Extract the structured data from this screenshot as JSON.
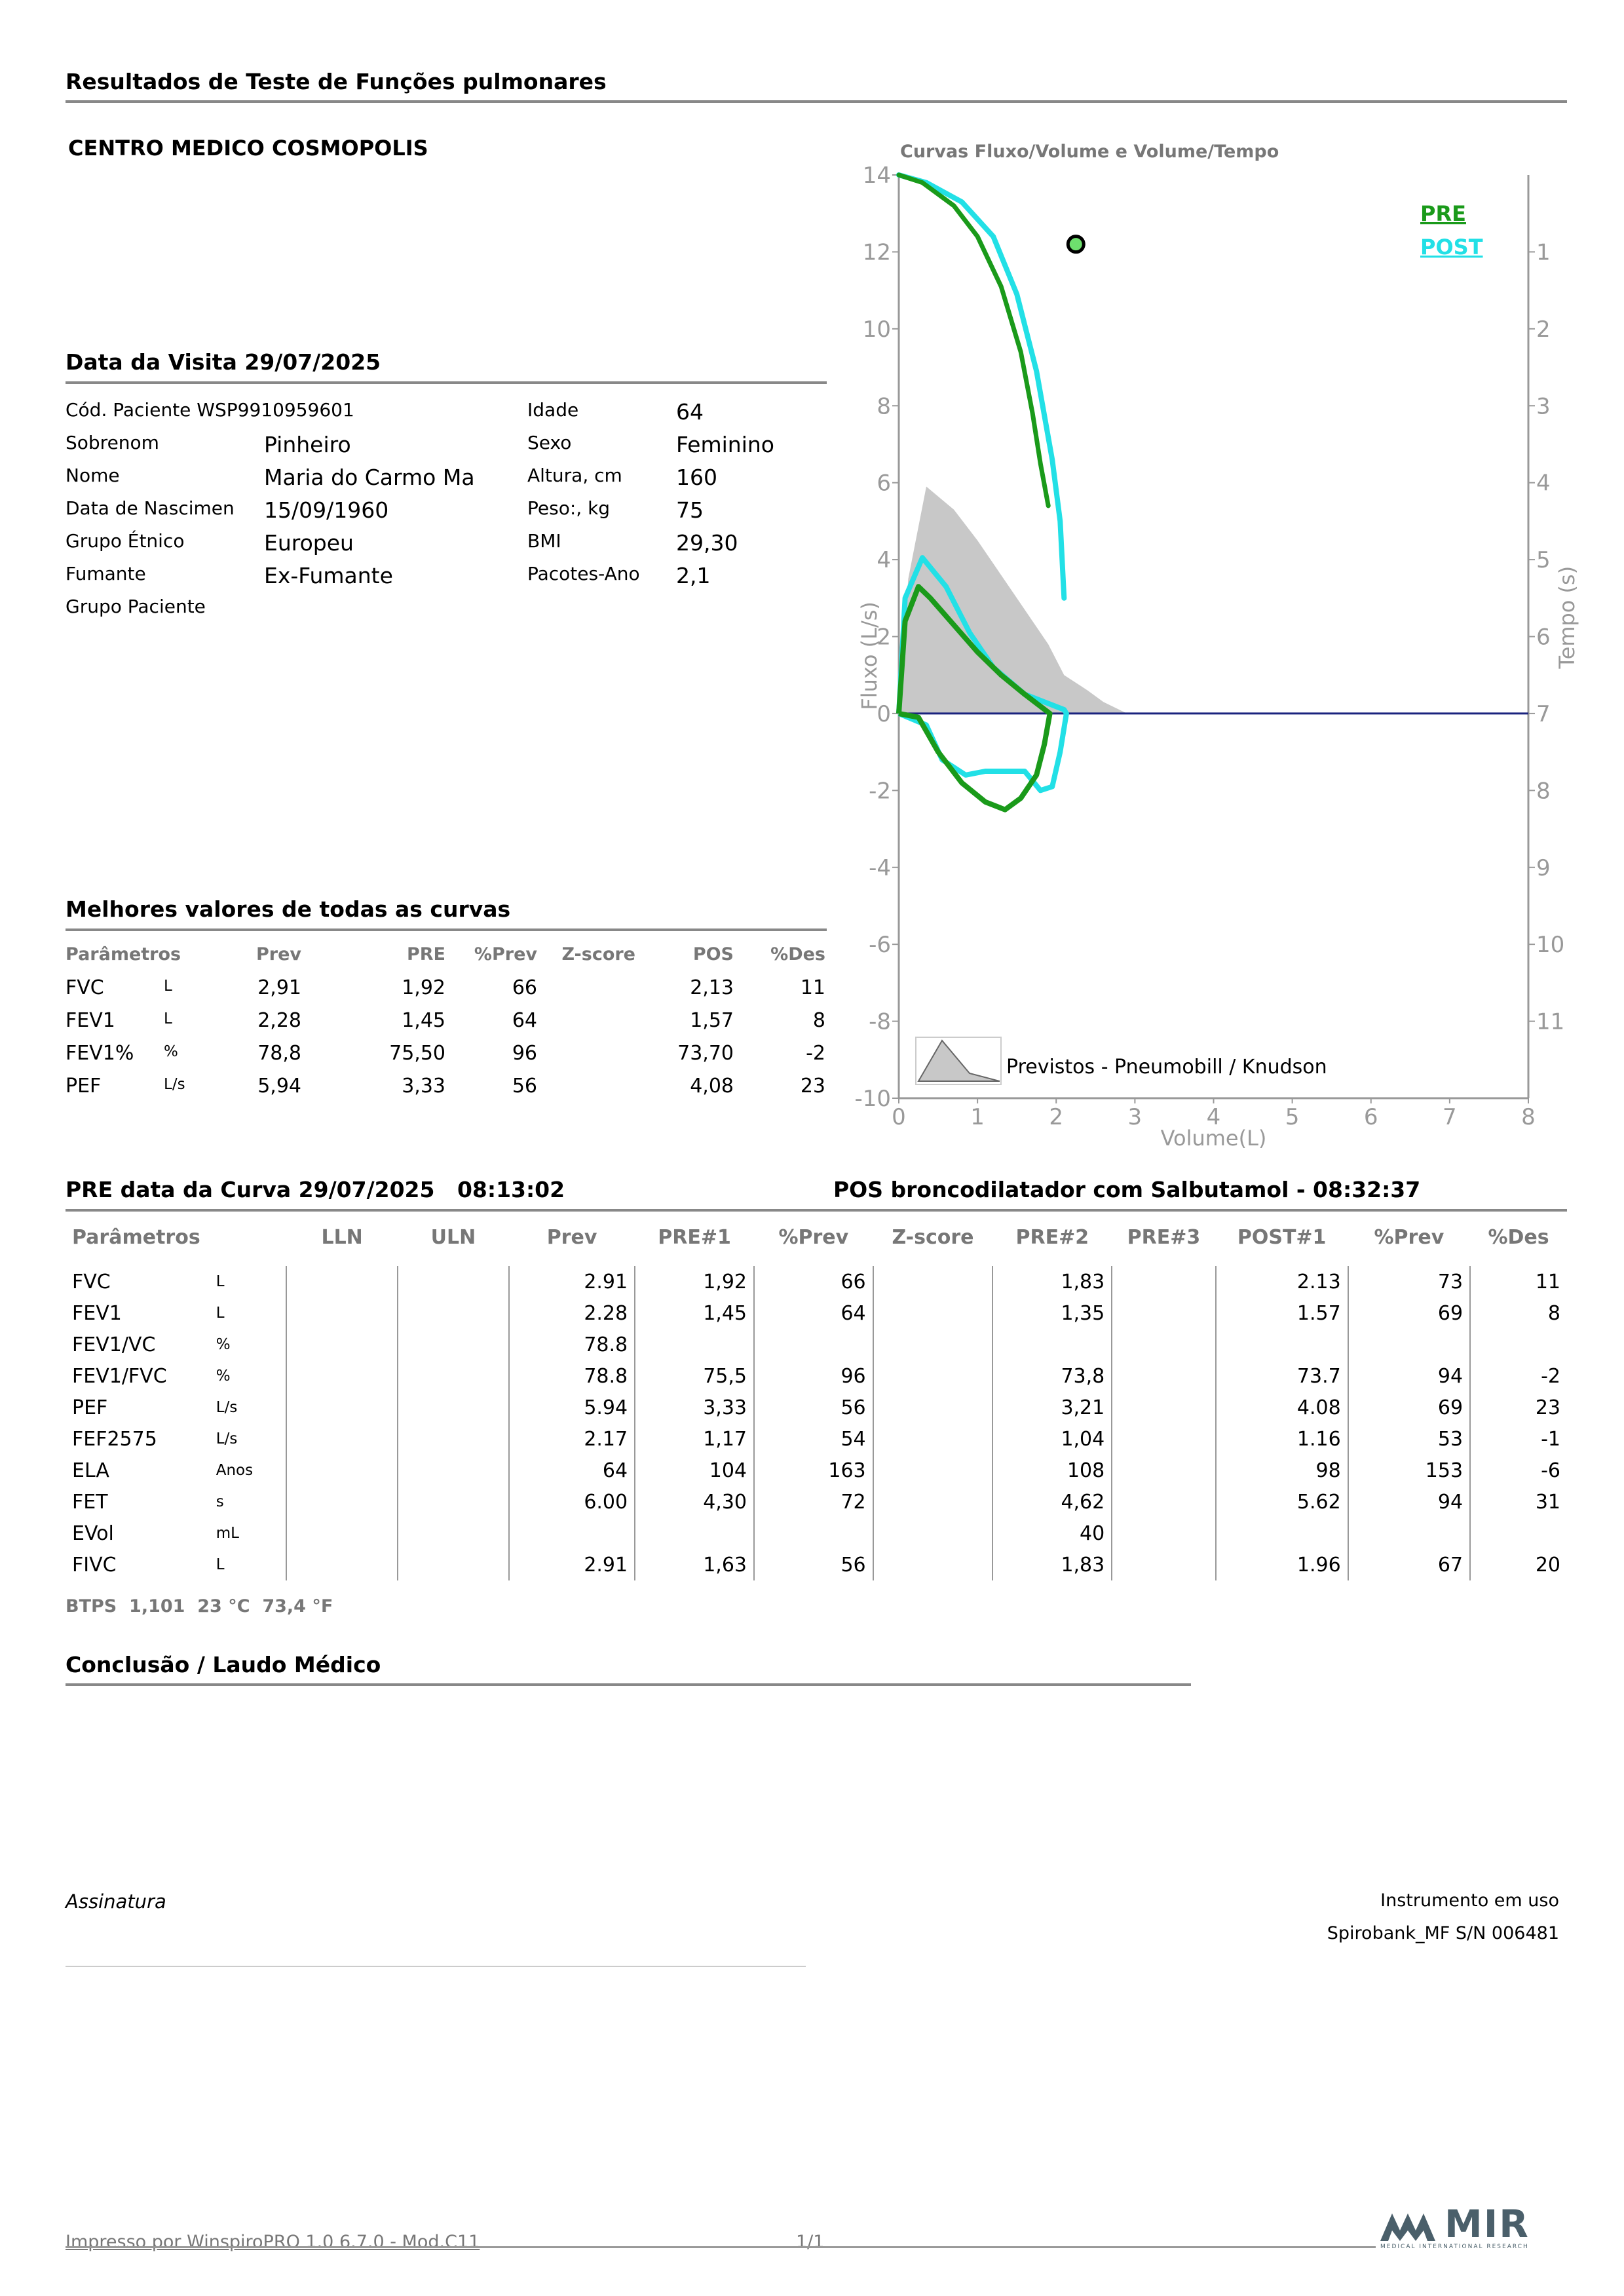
{
  "report_title": "Resultados de Teste de Funções pulmonares",
  "clinic": "CENTRO MEDICO COSMOPOLIS",
  "visit": {
    "label": "Data da Visita 29/07/2025"
  },
  "patient": {
    "left": [
      {
        "label": "Cód. Paciente WSP9910959601",
        "value": ""
      },
      {
        "label": "Sobrenom",
        "value": "Pinheiro"
      },
      {
        "label": "Nome",
        "value": "Maria do Carmo Ma"
      },
      {
        "label": "Data de Nascimen",
        "value": "15/09/1960"
      },
      {
        "label": "Grupo Étnico",
        "value": "Europeu"
      },
      {
        "label": "Fumante",
        "value": "Ex-Fumante"
      },
      {
        "label": "Grupo Paciente",
        "value": ""
      }
    ],
    "right": [
      {
        "label": "Idade",
        "value": "64"
      },
      {
        "label": "Sexo",
        "value": "Feminino"
      },
      {
        "label": "Altura, cm",
        "value": "160"
      },
      {
        "label": "Peso:, kg",
        "value": "75"
      },
      {
        "label": "BMI",
        "value": "29,30"
      },
      {
        "label": "Pacotes-Ano",
        "value": "2,1"
      }
    ]
  },
  "best": {
    "title": "Melhores valores de todas as curvas",
    "headers": [
      "Parâmetros",
      "Prev",
      "PRE",
      "%Prev",
      "Z-score",
      "POS",
      "%Des"
    ],
    "rows": [
      {
        "param": "FVC",
        "unit": "L",
        "prev": "2,91",
        "pre": "1,92",
        "pprev": "66",
        "z": "",
        "pos": "2,13",
        "pdes": "11"
      },
      {
        "param": "FEV1",
        "unit": "L",
        "prev": "2,28",
        "pre": "1,45",
        "pprev": "64",
        "z": "",
        "pos": "1,57",
        "pdes": "8"
      },
      {
        "param": "FEV1%",
        "unit": "%",
        "prev": "78,8",
        "pre": "75,50",
        "pprev": "96",
        "z": "",
        "pos": "73,70",
        "pdes": "-2"
      },
      {
        "param": "PEF",
        "unit": "L/s",
        "prev": "5,94",
        "pre": "3,33",
        "pprev": "56",
        "z": "",
        "pos": "4,08",
        "pdes": "23"
      }
    ]
  },
  "curve_section": {
    "pre_title": "PRE data da Curva 29/07/2025   08:13:02",
    "pos_title": "POS broncodilatador com Salbutamol - 08:32:37",
    "headers": [
      "Parâmetros",
      "",
      "LLN",
      "ULN",
      "Prev",
      "PRE#1",
      "%Prev",
      "Z-score",
      "PRE#2",
      "PRE#3",
      "POST#1",
      "%Prev",
      "%Des"
    ],
    "rows": [
      {
        "param": "FVC",
        "unit": "L",
        "lln": "",
        "uln": "",
        "prev": "2.91",
        "pre1": "1,92",
        "pprev": "66",
        "z": "",
        "pre2": "1,83",
        "pre3": "",
        "post1": "2.13",
        "ppost": "73",
        "pdes": "11"
      },
      {
        "param": "FEV1",
        "unit": "L",
        "lln": "",
        "uln": "",
        "prev": "2.28",
        "pre1": "1,45",
        "pprev": "64",
        "z": "",
        "pre2": "1,35",
        "pre3": "",
        "post1": "1.57",
        "ppost": "69",
        "pdes": "8"
      },
      {
        "param": "FEV1/VC",
        "unit": "%",
        "lln": "",
        "uln": "",
        "prev": "78.8",
        "pre1": "",
        "pprev": "",
        "z": "",
        "pre2": "",
        "pre3": "",
        "post1": "",
        "ppost": "",
        "pdes": ""
      },
      {
        "param": "FEV1/FVC",
        "unit": "%",
        "lln": "",
        "uln": "",
        "prev": "78.8",
        "pre1": "75,5",
        "pprev": "96",
        "z": "",
        "pre2": "73,8",
        "pre3": "",
        "post1": "73.7",
        "ppost": "94",
        "pdes": "-2"
      },
      {
        "param": "PEF",
        "unit": "L/s",
        "lln": "",
        "uln": "",
        "prev": "5.94",
        "pre1": "3,33",
        "pprev": "56",
        "z": "",
        "pre2": "3,21",
        "pre3": "",
        "post1": "4.08",
        "ppost": "69",
        "pdes": "23"
      },
      {
        "param": "FEF2575",
        "unit": "L/s",
        "lln": "",
        "uln": "",
        "prev": "2.17",
        "pre1": "1,17",
        "pprev": "54",
        "z": "",
        "pre2": "1,04",
        "pre3": "",
        "post1": "1.16",
        "ppost": "53",
        "pdes": "-1"
      },
      {
        "param": "ELA",
        "unit": "Anos",
        "lln": "",
        "uln": "",
        "prev": "64",
        "pre1": "104",
        "pprev": "163",
        "z": "",
        "pre2": "108",
        "pre3": "",
        "post1": "98",
        "ppost": "153",
        "pdes": "-6"
      },
      {
        "param": "FET",
        "unit": "s",
        "lln": "",
        "uln": "",
        "prev": "6.00",
        "pre1": "4,30",
        "pprev": "72",
        "z": "",
        "pre2": "4,62",
        "pre3": "",
        "post1": "5.62",
        "ppost": "94",
        "pdes": "31"
      },
      {
        "param": "EVol",
        "unit": "mL",
        "lln": "",
        "uln": "",
        "prev": "",
        "pre1": "",
        "pprev": "",
        "z": "",
        "pre2": "40",
        "pre3": "",
        "post1": "",
        "ppost": "",
        "pdes": ""
      },
      {
        "param": "FIVC",
        "unit": "L",
        "lln": "",
        "uln": "",
        "prev": "2.91",
        "pre1": "1,63",
        "pprev": "56",
        "z": "",
        "pre2": "1,83",
        "pre3": "",
        "post1": "1.96",
        "ppost": "67",
        "pdes": "20"
      }
    ],
    "btps": "BTPS  1,101  23 °C  73,4 °F"
  },
  "conclusion_title": "Conclusão / Laudo Médico",
  "signature_label": "Assinatura",
  "instrument": {
    "label": "Instrumento em uso",
    "value": "Spirobank_MF S/N 006481"
  },
  "footer": {
    "printed": "Impresso por WinspiroPRO 1.0 6.7.0 - Mod.C11",
    "page": "1/1",
    "logo_text": "MIR",
    "logo_sub": "MEDICAL INTERNATIONAL RESEARCH"
  },
  "colors": {
    "pre": "#1a9a1a",
    "post": "#22e0e6",
    "predicted": "#c8c8c8",
    "baseline": "#1a237e"
  },
  "chart_data": {
    "type": "line",
    "title": "Curvas Fluxo/Volume e Volume/Tempo",
    "xlabel": "Volume(L)",
    "ylabel": "Fluxo (L/s)",
    "y2label": "Tempo (s)",
    "xlim": [
      0,
      8
    ],
    "ylim": [
      -10,
      14
    ],
    "xticks": [
      "0",
      "1",
      "2",
      "3",
      "4",
      "5",
      "6",
      "7",
      "8"
    ],
    "yticks": [
      "14",
      "12",
      "10",
      "8",
      "6",
      "4",
      "2",
      "0",
      "-2",
      "-4",
      "-6",
      "-8",
      "-10"
    ],
    "y2ticks": [
      "1",
      "2",
      "3",
      "4",
      "5",
      "6",
      "7",
      "8",
      "9",
      "10",
      "11"
    ],
    "legend": {
      "pre": "PRE",
      "post": "POST",
      "position": "top-right"
    },
    "predicted_label": "Previstos - Pneumobill / Knudson",
    "predicted_area": [
      [
        0,
        0
      ],
      [
        0.12,
        3.5
      ],
      [
        0.35,
        5.9
      ],
      [
        0.7,
        5.3
      ],
      [
        1.0,
        4.5
      ],
      [
        1.3,
        3.6
      ],
      [
        1.6,
        2.7
      ],
      [
        1.9,
        1.8
      ],
      [
        2.1,
        1.0
      ],
      [
        2.4,
        0.6
      ],
      [
        2.6,
        0.3
      ],
      [
        2.9,
        0
      ],
      [
        0,
        0
      ]
    ],
    "pre_flow_volume": [
      [
        0,
        0
      ],
      [
        0.08,
        2.4
      ],
      [
        0.25,
        3.3
      ],
      [
        0.4,
        3.0
      ],
      [
        0.7,
        2.3
      ],
      [
        1.0,
        1.6
      ],
      [
        1.3,
        1.0
      ],
      [
        1.6,
        0.5
      ],
      [
        1.92,
        0
      ],
      [
        1.85,
        -0.8
      ],
      [
        1.75,
        -1.6
      ],
      [
        1.55,
        -2.2
      ],
      [
        1.35,
        -2.5
      ],
      [
        1.1,
        -2.3
      ],
      [
        0.8,
        -1.8
      ],
      [
        0.5,
        -1.0
      ],
      [
        0.25,
        -0.1
      ],
      [
        0,
        0
      ]
    ],
    "post_flow_volume": [
      [
        0,
        0
      ],
      [
        0.08,
        3.0
      ],
      [
        0.3,
        4.05
      ],
      [
        0.6,
        3.3
      ],
      [
        0.9,
        2.1
      ],
      [
        1.2,
        1.2
      ],
      [
        1.6,
        0.5
      ],
      [
        2.1,
        0.1
      ],
      [
        2.13,
        0
      ],
      [
        2.05,
        -1.0
      ],
      [
        1.95,
        -1.9
      ],
      [
        1.8,
        -2.0
      ],
      [
        1.6,
        -1.5
      ],
      [
        1.1,
        -1.5
      ],
      [
        0.85,
        -1.6
      ],
      [
        0.55,
        -1.2
      ],
      [
        0.35,
        -0.3
      ],
      [
        0,
        0
      ]
    ],
    "pre_volume_time": [
      [
        0,
        14
      ],
      [
        0.3,
        13.8
      ],
      [
        0.7,
        13.2
      ],
      [
        1.0,
        12.4
      ],
      [
        1.3,
        11.1
      ],
      [
        1.55,
        9.4
      ],
      [
        1.7,
        7.8
      ],
      [
        1.8,
        6.5
      ],
      [
        1.9,
        5.4
      ]
    ],
    "post_volume_time": [
      [
        0,
        14
      ],
      [
        0.35,
        13.8
      ],
      [
        0.8,
        13.3
      ],
      [
        1.2,
        12.4
      ],
      [
        1.5,
        10.9
      ],
      [
        1.75,
        8.9
      ],
      [
        1.95,
        6.6
      ],
      [
        2.05,
        5.0
      ],
      [
        2.1,
        3.0
      ]
    ],
    "marker": [
      2.25,
      12.2
    ]
  }
}
